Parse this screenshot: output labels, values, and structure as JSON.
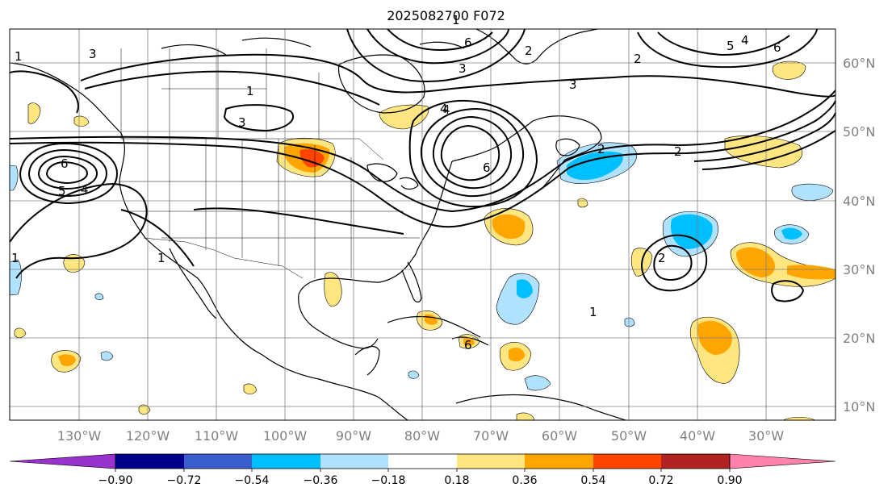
{
  "title": "2025082700 F072",
  "map": {
    "lon_labels": [
      "130°W",
      "120°W",
      "110°W",
      "100°W",
      "90°W",
      "80°W",
      "70°W",
      "60°W",
      "50°W",
      "40°W",
      "30°W"
    ],
    "lat_labels": [
      "60°N",
      "50°N",
      "40°N",
      "30°N",
      "20°N",
      "10°N"
    ],
    "contour_labels": [
      "1",
      "2",
      "1",
      "6",
      "5",
      "4",
      "3",
      "3",
      "6",
      "4",
      "3",
      "2",
      "3",
      "4",
      "6",
      "5",
      "4",
      "6",
      "2",
      "1",
      "1",
      "2",
      "2",
      "1",
      "6",
      "1"
    ]
  },
  "colorbar": {
    "ticks": [
      "−0.90",
      "−0.72",
      "−0.54",
      "−0.36",
      "−0.18",
      "0.18",
      "0.36",
      "0.54",
      "0.72",
      "0.90"
    ],
    "colors": [
      "#9932cc",
      "#00008b",
      "#3a5fcd",
      "#00bfff",
      "#b0e2ff",
      "#ffffff",
      "#ffe680",
      "#ffa500",
      "#ff4500",
      "#b22222",
      "#ff82ab"
    ]
  },
  "colors": {
    "yellow": "#ffe680",
    "orange": "#ffa500",
    "red": "#ff4500",
    "lightblue": "#b0e2ff",
    "blue": "#00bfff",
    "grid": "#808080"
  }
}
